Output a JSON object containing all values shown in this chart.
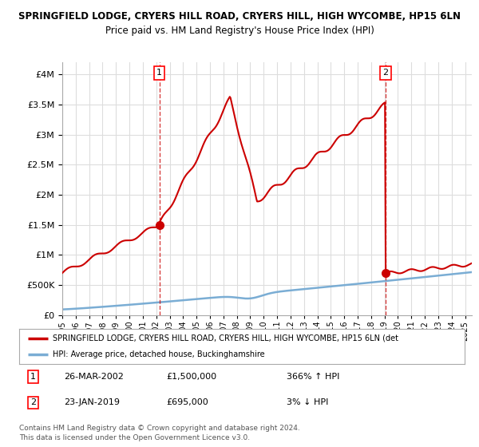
{
  "title1": "SPRINGFIELD LODGE, CRYERS HILL ROAD, CRYERS HILL, HIGH WYCOMBE, HP15 6LN",
  "title2": "Price paid vs. HM Land Registry's House Price Index (HPI)",
  "sale1_date": "26-MAR-2002",
  "sale1_price": 1500000,
  "sale1_label": "366% ↑ HPI",
  "sale2_date": "23-JAN-2019",
  "sale2_price": 695000,
  "sale2_label": "3% ↓ HPI",
  "legend1": "SPRINGFIELD LODGE, CRYERS HILL ROAD, CRYERS HILL, HIGH WYCOMBE, HP15 6LN (det",
  "legend2": "HPI: Average price, detached house, Buckinghamshire",
  "footnote1": "Contains HM Land Registry data © Crown copyright and database right 2024.",
  "footnote2": "This data is licensed under the Open Government Licence v3.0.",
  "red_color": "#cc0000",
  "blue_color": "#7aadd4",
  "background_color": "#ffffff",
  "grid_color": "#dddddd",
  "ylim": [
    0,
    4200000
  ],
  "sale1_year": 2002.23,
  "sale2_year": 2019.07
}
